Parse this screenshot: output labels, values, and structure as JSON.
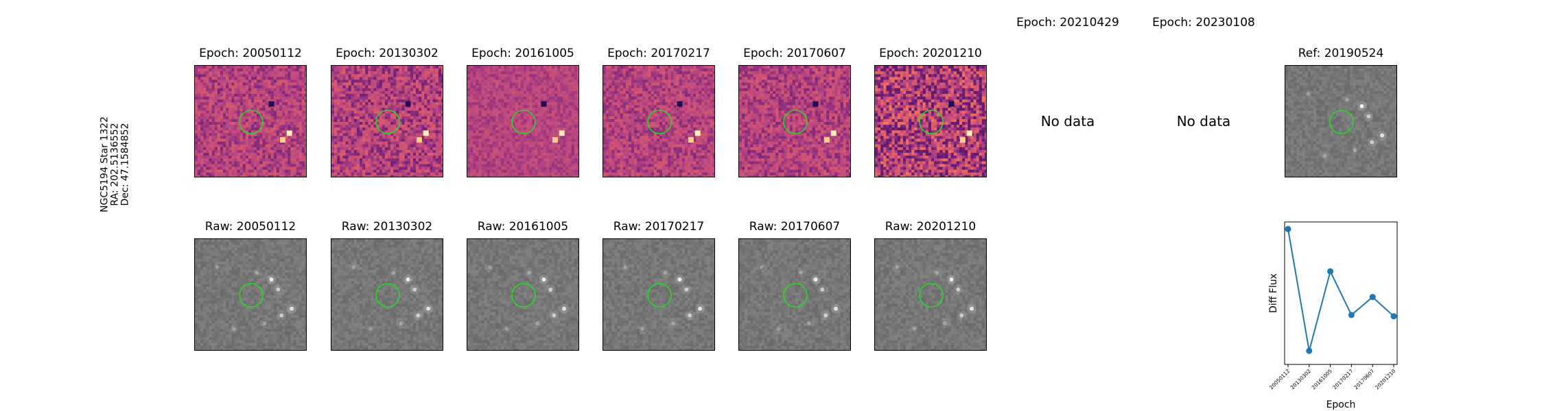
{
  "target": {
    "label_lines": [
      "NGC5194 Star 1322",
      "RA: 202.5136552",
      "Dec: 47.1584852"
    ]
  },
  "diff_row": [
    {
      "title": "Epoch: 20050112",
      "has_data": true,
      "seed": 11,
      "noise": 0.5
    },
    {
      "title": "Epoch: 20130302",
      "has_data": true,
      "seed": 23,
      "noise": 0.6
    },
    {
      "title": "Epoch: 20161005",
      "has_data": true,
      "seed": 37,
      "noise": 0.3
    },
    {
      "title": "Epoch: 20170217",
      "has_data": true,
      "seed": 41,
      "noise": 0.45
    },
    {
      "title": "Epoch: 20170607",
      "has_data": true,
      "seed": 53,
      "noise": 0.5
    },
    {
      "title": "Epoch: 20201210",
      "has_data": true,
      "seed": 67,
      "noise": 1.0
    },
    {
      "title": "Epoch: 20210429",
      "has_data": false,
      "nodata_text": "No data"
    },
    {
      "title": "Epoch: 20230108",
      "has_data": false,
      "nodata_text": "No data"
    },
    {
      "title": "Ref: 20190524",
      "has_data": true,
      "reference": true,
      "seed": 79
    }
  ],
  "raw_row": [
    {
      "title": "Raw: 20050112",
      "seed": 101
    },
    {
      "title": "Raw: 20130302",
      "seed": 113
    },
    {
      "title": "Raw: 20161005",
      "seed": 127
    },
    {
      "title": "Raw: 20170217",
      "seed": 131
    },
    {
      "title": "Raw: 20170607",
      "seed": 137
    },
    {
      "title": "Raw: 20201210",
      "seed": 149
    }
  ],
  "colors": {
    "aperture": "#22dd22",
    "diff_base": "#c05a8c",
    "series_line": "#1f77b4"
  },
  "chart_data": {
    "type": "line",
    "title": "",
    "xlabel": "Epoch",
    "ylabel": "Diff Flux",
    "categories": [
      "20050112",
      "20130302",
      "20161005",
      "20170217",
      "20170607",
      "20201210"
    ],
    "series": [
      {
        "values": [
          1.0,
          0.05,
          0.67,
          0.33,
          0.47,
          0.32
        ]
      }
    ],
    "ylim": [
      0.0,
      1.0
    ],
    "grid": false,
    "y_ticks_shown": false
  }
}
